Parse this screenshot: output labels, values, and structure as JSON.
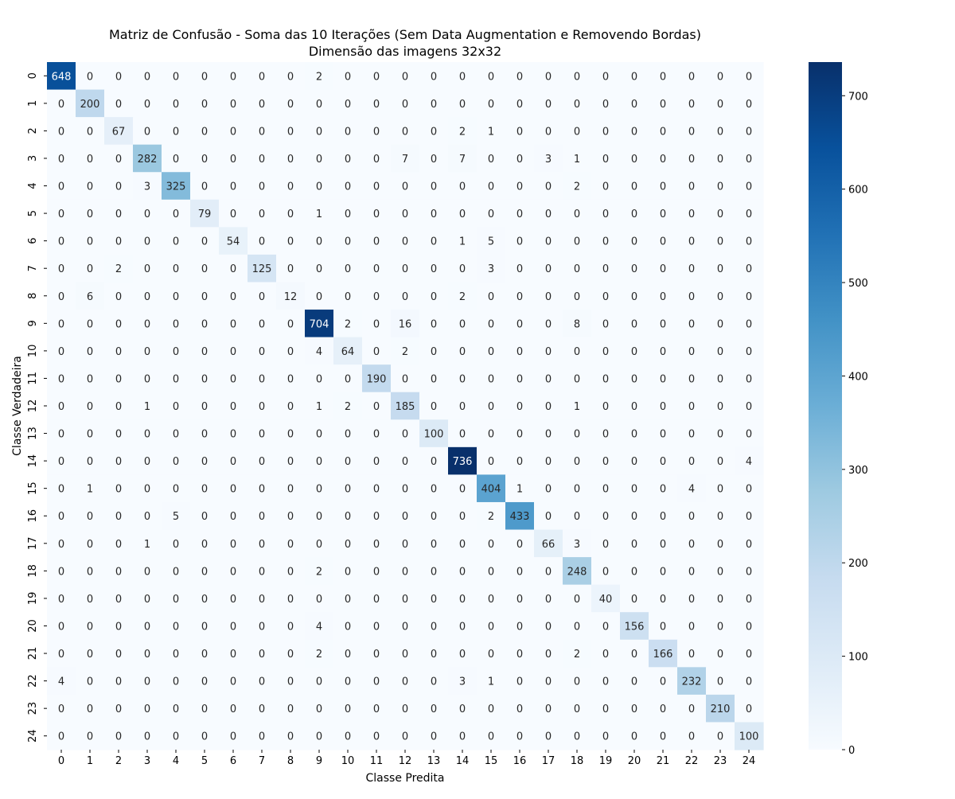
{
  "chart_data": {
    "type": "heatmap",
    "title": "Matriz de Confusão - Soma das 10 Iterações (Sem Data Augmentation e Removendo Bordas)",
    "subtitle": "Dimensão das imagens 32x32",
    "xlabel": "Classe Predita",
    "ylabel": "Classe Verdadeira",
    "x_categories": [
      "0",
      "1",
      "2",
      "3",
      "4",
      "5",
      "6",
      "7",
      "8",
      "9",
      "10",
      "11",
      "12",
      "13",
      "14",
      "15",
      "16",
      "17",
      "18",
      "19",
      "20",
      "21",
      "22",
      "23",
      "24"
    ],
    "y_categories": [
      "0",
      "1",
      "2",
      "3",
      "4",
      "5",
      "6",
      "7",
      "8",
      "9",
      "10",
      "11",
      "12",
      "13",
      "14",
      "15",
      "16",
      "17",
      "18",
      "19",
      "20",
      "21",
      "22",
      "23",
      "24"
    ],
    "colorbar": {
      "min": 0,
      "max": 736,
      "ticks": [
        0,
        100,
        200,
        300,
        400,
        500,
        600,
        700
      ],
      "colormap": "Blues"
    },
    "values": [
      [
        648,
        0,
        0,
        0,
        0,
        0,
        0,
        0,
        0,
        2,
        0,
        0,
        0,
        0,
        0,
        0,
        0,
        0,
        0,
        0,
        0,
        0,
        0,
        0,
        0
      ],
      [
        0,
        200,
        0,
        0,
        0,
        0,
        0,
        0,
        0,
        0,
        0,
        0,
        0,
        0,
        0,
        0,
        0,
        0,
        0,
        0,
        0,
        0,
        0,
        0,
        0
      ],
      [
        0,
        0,
        67,
        0,
        0,
        0,
        0,
        0,
        0,
        0,
        0,
        0,
        0,
        0,
        2,
        1,
        0,
        0,
        0,
        0,
        0,
        0,
        0,
        0,
        0
      ],
      [
        0,
        0,
        0,
        282,
        0,
        0,
        0,
        0,
        0,
        0,
        0,
        0,
        7,
        0,
        7,
        0,
        0,
        3,
        1,
        0,
        0,
        0,
        0,
        0,
        0
      ],
      [
        0,
        0,
        0,
        3,
        325,
        0,
        0,
        0,
        0,
        0,
        0,
        0,
        0,
        0,
        0,
        0,
        0,
        0,
        2,
        0,
        0,
        0,
        0,
        0,
        0
      ],
      [
        0,
        0,
        0,
        0,
        0,
        79,
        0,
        0,
        0,
        1,
        0,
        0,
        0,
        0,
        0,
        0,
        0,
        0,
        0,
        0,
        0,
        0,
        0,
        0,
        0
      ],
      [
        0,
        0,
        0,
        0,
        0,
        0,
        54,
        0,
        0,
        0,
        0,
        0,
        0,
        0,
        1,
        5,
        0,
        0,
        0,
        0,
        0,
        0,
        0,
        0,
        0
      ],
      [
        0,
        0,
        2,
        0,
        0,
        0,
        0,
        125,
        0,
        0,
        0,
        0,
        0,
        0,
        0,
        3,
        0,
        0,
        0,
        0,
        0,
        0,
        0,
        0,
        0
      ],
      [
        0,
        6,
        0,
        0,
        0,
        0,
        0,
        0,
        12,
        0,
        0,
        0,
        0,
        0,
        2,
        0,
        0,
        0,
        0,
        0,
        0,
        0,
        0,
        0,
        0
      ],
      [
        0,
        0,
        0,
        0,
        0,
        0,
        0,
        0,
        0,
        704,
        2,
        0,
        16,
        0,
        0,
        0,
        0,
        0,
        8,
        0,
        0,
        0,
        0,
        0,
        0
      ],
      [
        0,
        0,
        0,
        0,
        0,
        0,
        0,
        0,
        0,
        4,
        64,
        0,
        2,
        0,
        0,
        0,
        0,
        0,
        0,
        0,
        0,
        0,
        0,
        0,
        0
      ],
      [
        0,
        0,
        0,
        0,
        0,
        0,
        0,
        0,
        0,
        0,
        0,
        190,
        0,
        0,
        0,
        0,
        0,
        0,
        0,
        0,
        0,
        0,
        0,
        0,
        0
      ],
      [
        0,
        0,
        0,
        1,
        0,
        0,
        0,
        0,
        0,
        1,
        2,
        0,
        185,
        0,
        0,
        0,
        0,
        0,
        1,
        0,
        0,
        0,
        0,
        0,
        0
      ],
      [
        0,
        0,
        0,
        0,
        0,
        0,
        0,
        0,
        0,
        0,
        0,
        0,
        0,
        100,
        0,
        0,
        0,
        0,
        0,
        0,
        0,
        0,
        0,
        0,
        0
      ],
      [
        0,
        0,
        0,
        0,
        0,
        0,
        0,
        0,
        0,
        0,
        0,
        0,
        0,
        0,
        736,
        0,
        0,
        0,
        0,
        0,
        0,
        0,
        0,
        0,
        4
      ],
      [
        0,
        1,
        0,
        0,
        0,
        0,
        0,
        0,
        0,
        0,
        0,
        0,
        0,
        0,
        0,
        404,
        1,
        0,
        0,
        0,
        0,
        0,
        4,
        0,
        0
      ],
      [
        0,
        0,
        0,
        0,
        5,
        0,
        0,
        0,
        0,
        0,
        0,
        0,
        0,
        0,
        0,
        2,
        433,
        0,
        0,
        0,
        0,
        0,
        0,
        0,
        0
      ],
      [
        0,
        0,
        0,
        1,
        0,
        0,
        0,
        0,
        0,
        0,
        0,
        0,
        0,
        0,
        0,
        0,
        0,
        66,
        3,
        0,
        0,
        0,
        0,
        0,
        0
      ],
      [
        0,
        0,
        0,
        0,
        0,
        0,
        0,
        0,
        0,
        2,
        0,
        0,
        0,
        0,
        0,
        0,
        0,
        0,
        248,
        0,
        0,
        0,
        0,
        0,
        0
      ],
      [
        0,
        0,
        0,
        0,
        0,
        0,
        0,
        0,
        0,
        0,
        0,
        0,
        0,
        0,
        0,
        0,
        0,
        0,
        0,
        40,
        0,
        0,
        0,
        0,
        0
      ],
      [
        0,
        0,
        0,
        0,
        0,
        0,
        0,
        0,
        0,
        4,
        0,
        0,
        0,
        0,
        0,
        0,
        0,
        0,
        0,
        0,
        156,
        0,
        0,
        0,
        0
      ],
      [
        0,
        0,
        0,
        0,
        0,
        0,
        0,
        0,
        0,
        2,
        0,
        0,
        0,
        0,
        0,
        0,
        0,
        0,
        2,
        0,
        0,
        166,
        0,
        0,
        0
      ],
      [
        4,
        0,
        0,
        0,
        0,
        0,
        0,
        0,
        0,
        0,
        0,
        0,
        0,
        0,
        3,
        1,
        0,
        0,
        0,
        0,
        0,
        0,
        232,
        0,
        0
      ],
      [
        0,
        0,
        0,
        0,
        0,
        0,
        0,
        0,
        0,
        0,
        0,
        0,
        0,
        0,
        0,
        0,
        0,
        0,
        0,
        0,
        0,
        0,
        0,
        210,
        0
      ],
      [
        0,
        0,
        0,
        0,
        0,
        0,
        0,
        0,
        0,
        0,
        0,
        0,
        0,
        0,
        0,
        0,
        0,
        0,
        0,
        0,
        0,
        0,
        0,
        0,
        100
      ]
    ]
  }
}
